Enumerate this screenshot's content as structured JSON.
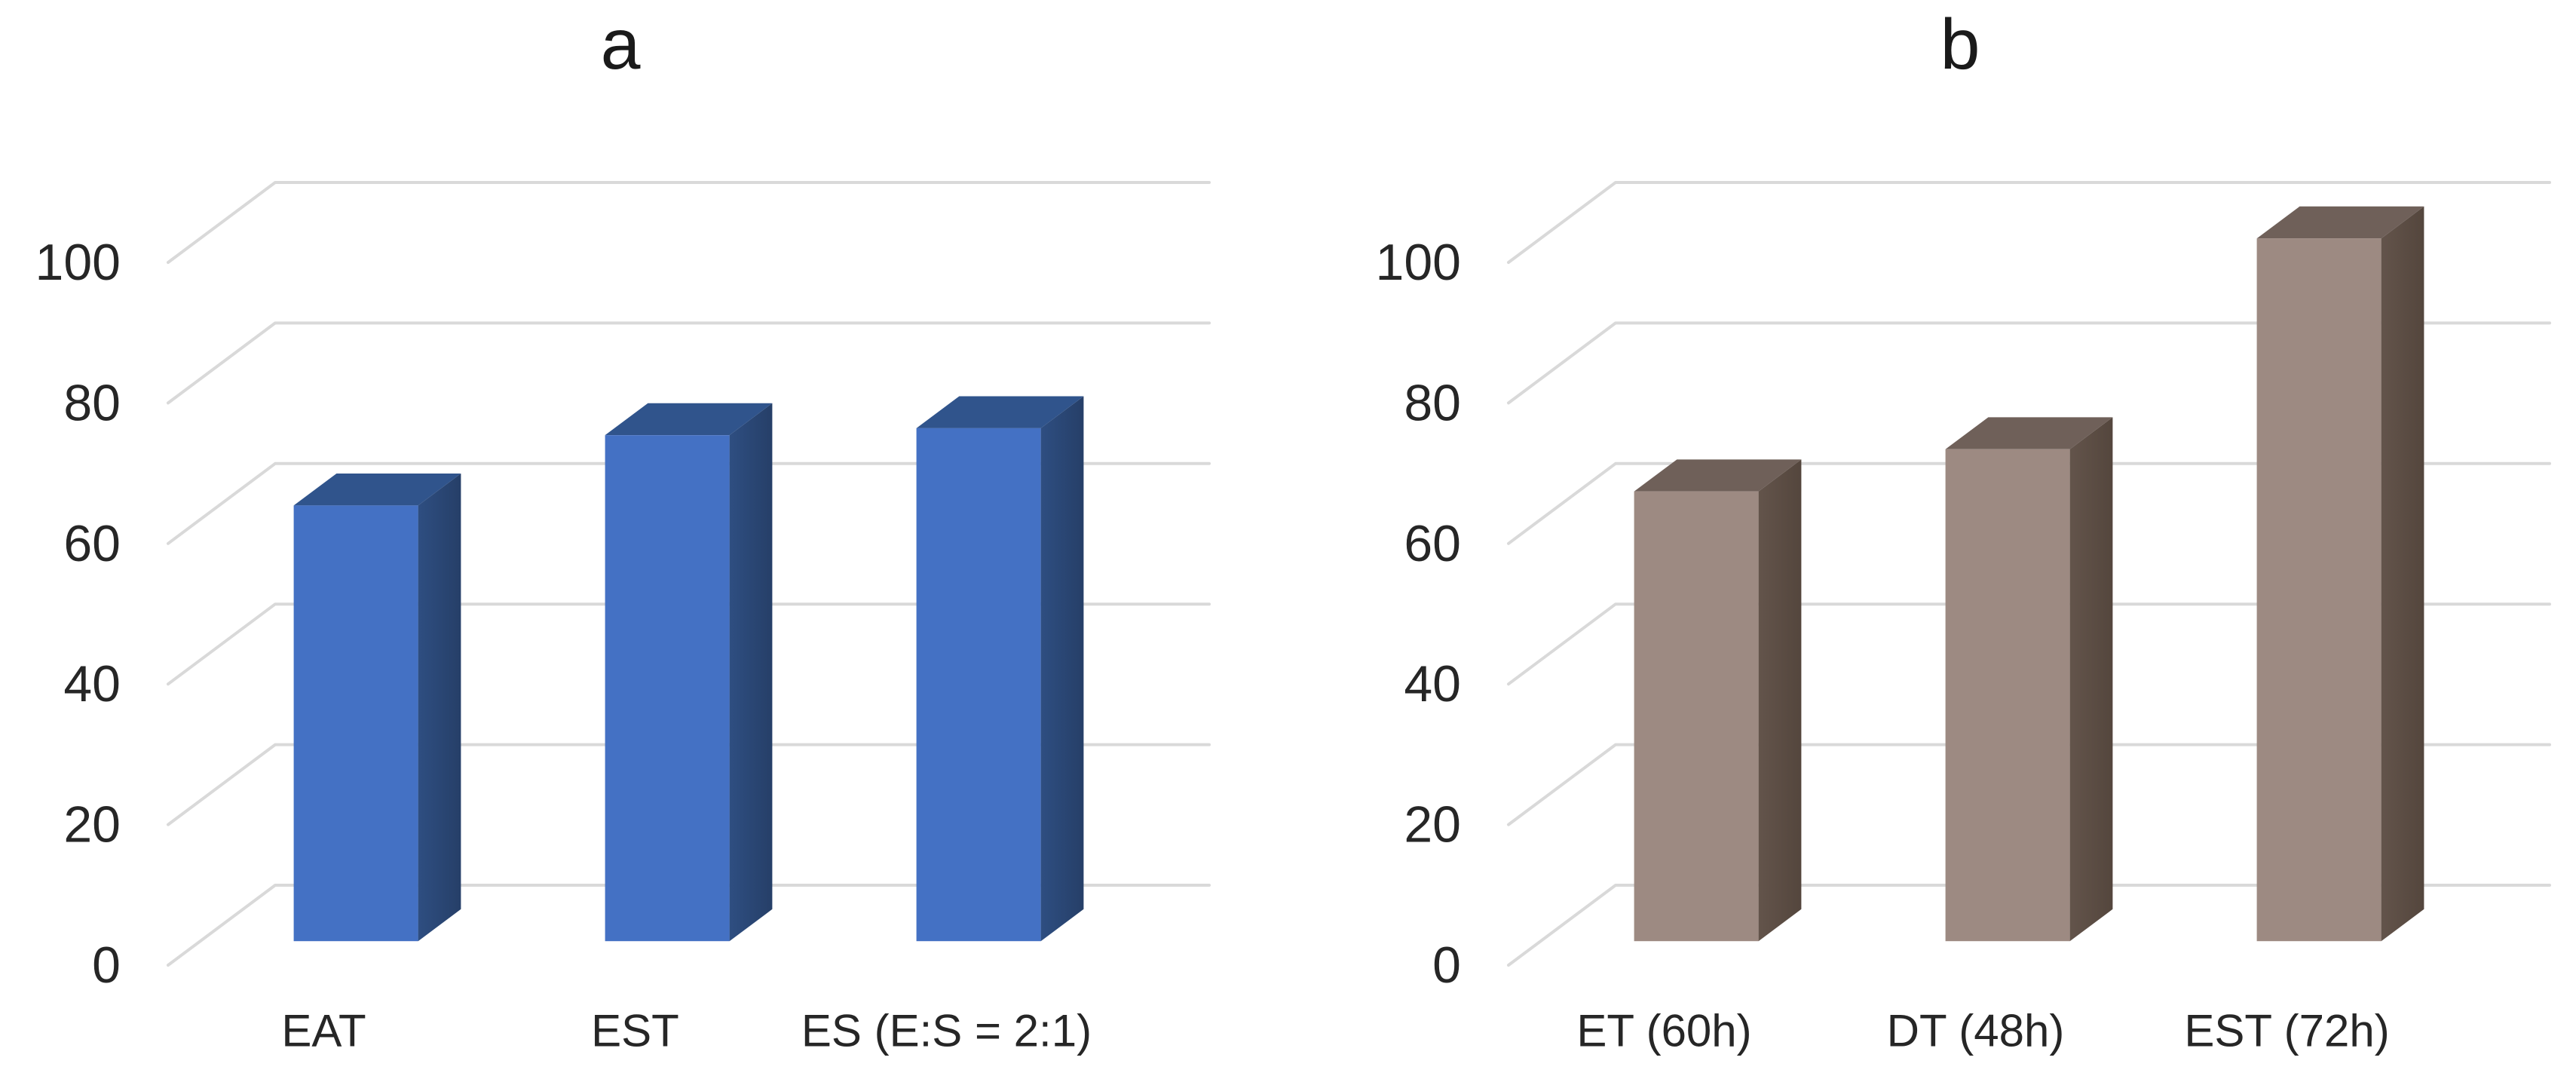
{
  "figure": {
    "background": "#FFFFFF",
    "panel_count": 2
  },
  "colors": {
    "gridline": "#D9D9D9",
    "text": "#262626",
    "title_text": "#1a1a1a",
    "background": "#FFFFFF"
  },
  "chart_data": [
    {
      "type": "bar",
      "style": "3d-column",
      "title": "a",
      "categories": [
        "EAT",
        "EST",
        "ES (E:S = 2:1)"
      ],
      "values": [
        62,
        72,
        73
      ],
      "xlabel": "",
      "ylabel": "",
      "ylim": [
        0,
        100
      ],
      "yticks": [
        0,
        20,
        40,
        60,
        80,
        100
      ],
      "grid": true,
      "legend": "none",
      "bar_color_front": "#4471C4",
      "bar_color_top": "#30548C",
      "bar_color_side": "#2E4E81",
      "bar_color_side_dark": "#263F68"
    },
    {
      "type": "bar",
      "style": "3d-column",
      "title": "b",
      "categories": [
        "ET (60h)",
        "DT (48h)",
        "EST (72h)"
      ],
      "values": [
        64,
        70,
        100
      ],
      "xlabel": "",
      "ylabel": "",
      "ylim": [
        0,
        100
      ],
      "yticks": [
        0,
        20,
        40,
        60,
        80,
        100
      ],
      "grid": true,
      "legend": "none",
      "bar_color_front": "#9D8A82",
      "bar_color_top": "#6F6059",
      "bar_color_side": "#63544B",
      "bar_color_side_dark": "#54463D"
    }
  ]
}
